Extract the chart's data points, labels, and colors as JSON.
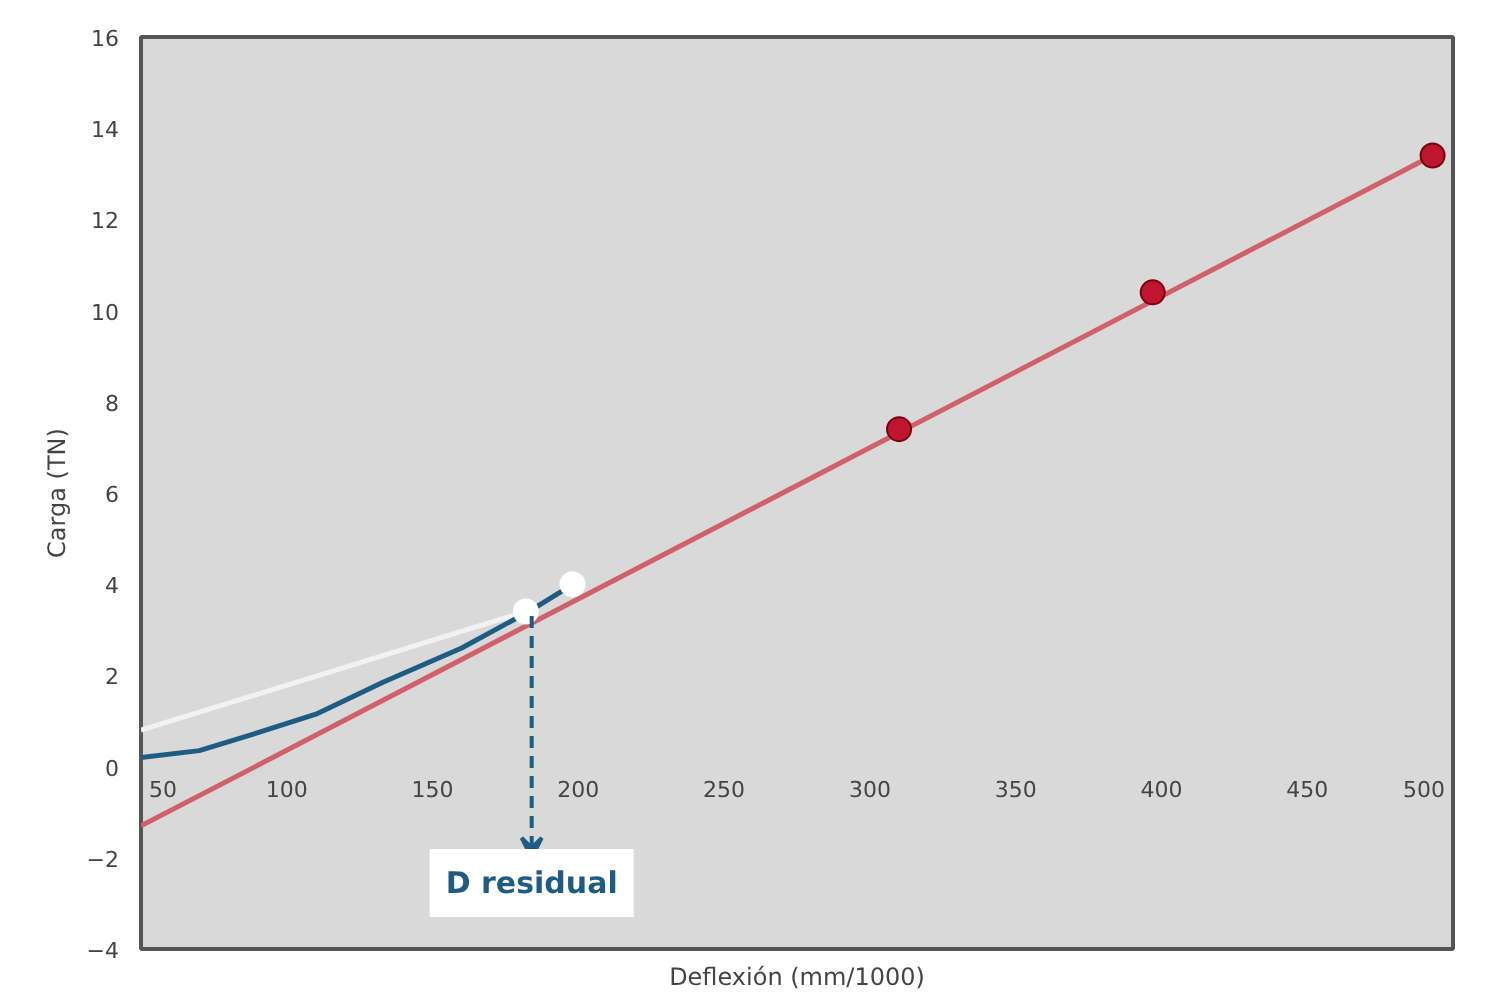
{
  "chart_data": {
    "type": "line",
    "xlabel": "Deflexión (mm/1000)",
    "ylabel": "Carga (TN)",
    "xlim": [
      50,
      500
    ],
    "xticks": [
      50,
      100,
      150,
      200,
      250,
      300,
      350,
      400,
      450,
      500
    ],
    "ylim": [
      -4,
      16
    ],
    "yticks": [
      -4,
      -2,
      0,
      2,
      4,
      6,
      8,
      10,
      12,
      14,
      16
    ],
    "grid": false,
    "series": [
      {
        "color": "#d0606a",
        "x": [
          50,
          493
        ],
        "values": [
          -1.3,
          13.4
        ],
        "marker": "none"
      },
      {
        "type": "scatter",
        "color": "#c0152f",
        "x": [
          310,
          397,
          493
        ],
        "values": [
          7.4,
          10.4,
          13.4
        ],
        "marker": "circle"
      },
      {
        "color": "#f2f2f2",
        "x": [
          50,
          182
        ],
        "values": [
          0.8,
          3.4
        ],
        "marker": "none"
      },
      {
        "color": "#1f5c84",
        "x": [
          50,
          70,
          88,
          110,
          133,
          160,
          183,
          197
        ],
        "values": [
          0.2,
          0.35,
          0.7,
          1.15,
          1.85,
          2.6,
          3.4,
          3.95
        ],
        "marker": "none"
      },
      {
        "type": "scatter",
        "color": "#ffffff",
        "x": [
          182,
          198
        ],
        "values": [
          3.4,
          4.0
        ],
        "marker": "circle"
      }
    ],
    "annotations": [
      {
        "text": "D residual",
        "x": 184,
        "y": 3.3
      }
    ]
  }
}
